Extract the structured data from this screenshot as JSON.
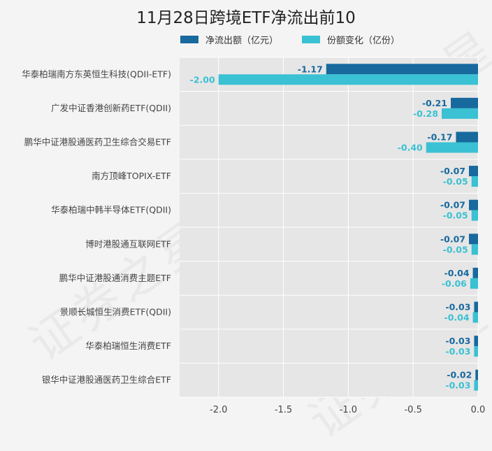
{
  "title": "11月28日跨境ETF净流出前10",
  "watermark": "证券之星",
  "colors": {
    "flow": "#17699e",
    "share": "#3ac1d3",
    "plot_bg": "#e6e6e6",
    "grid": "#ffffff"
  },
  "chart_data": {
    "type": "bar",
    "orientation": "horizontal",
    "title": "11月28日跨境ETF净流出前10",
    "categories": [
      "华泰柏瑞南方东英恒生科技(QDII-ETF)",
      "广发中证香港创新药ETF(QDII)",
      "鹏华中证港股通医药卫生综合交易ETF",
      "南方顶峰TOPIX-ETF",
      "华泰柏瑞中韩半导体ETF(QDII)",
      "博时港股通互联网ETF",
      "鹏华中证港股通消费主题ETF",
      "景顺长城恒生消费ETF(QDII)",
      "华泰柏瑞恒生消费ETF",
      "银华中证港股通医药卫生综合ETF"
    ],
    "series": [
      {
        "name": "净流出额（亿元）",
        "values": [
          -1.17,
          -0.21,
          -0.17,
          -0.07,
          -0.07,
          -0.07,
          -0.04,
          -0.03,
          -0.03,
          -0.02
        ],
        "labels": [
          "-1.17",
          "-0.21",
          "-0.17",
          "-0.07",
          "-0.07",
          "-0.07",
          "-0.04",
          "-0.03",
          "-0.03",
          "-0.02"
        ]
      },
      {
        "name": "份额变化（亿份）",
        "values": [
          -2.0,
          -0.28,
          -0.4,
          -0.05,
          -0.05,
          -0.05,
          -0.06,
          -0.04,
          -0.03,
          -0.03
        ],
        "labels": [
          "-2.00",
          "-0.28",
          "-0.40",
          "-0.05",
          "-0.05",
          "-0.05",
          "-0.06",
          "-0.04",
          "-0.03",
          "-0.03"
        ]
      }
    ],
    "xlim": [
      -2.3,
      0.0
    ],
    "xticks": [
      -2.0,
      -1.5,
      -1.0,
      -0.5,
      0.0
    ],
    "xtick_labels": [
      "-2.0",
      "-1.5",
      "-1.0",
      "-0.5",
      "0.0"
    ],
    "grid": true,
    "legend_position": "top"
  }
}
